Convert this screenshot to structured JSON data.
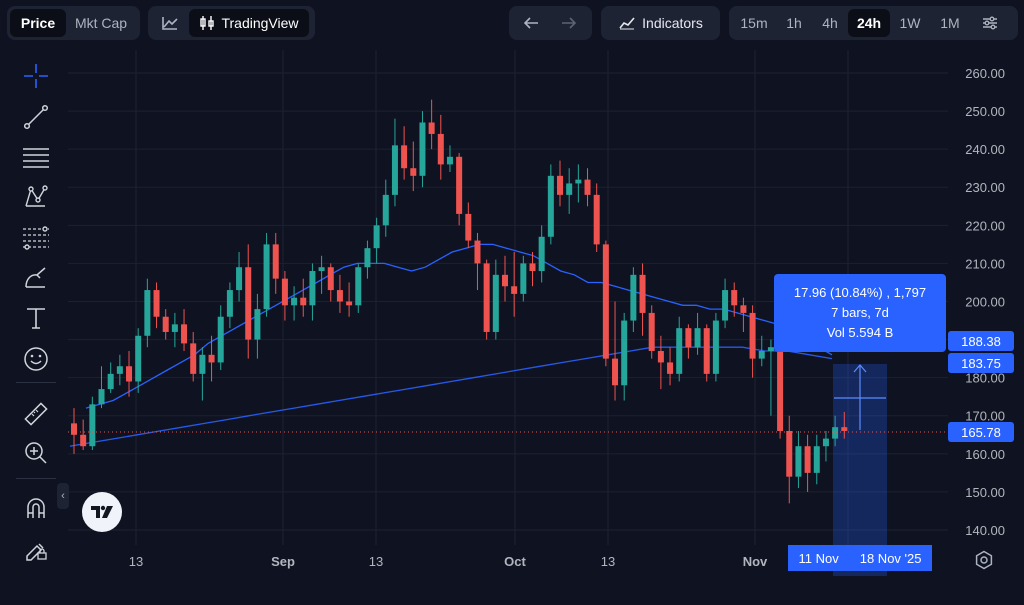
{
  "toolbar": {
    "price_label": "Price",
    "mktcap_label": "Mkt Cap",
    "tradingview_label": "TradingView",
    "indicators_label": "Indicators",
    "timeframes": [
      "15m",
      "1h",
      "4h",
      "24h",
      "1W",
      "1M"
    ],
    "active_timeframe": "24h"
  },
  "left_tools": [
    "crosshair-icon",
    "trend-line-icon",
    "horizontal-lines-icon",
    "pattern-icon",
    "fib-icon",
    "brush-icon",
    "text-icon",
    "emoji-icon",
    "ruler-icon",
    "zoom-in-icon",
    "magnet-icon",
    "lock-pencil-icon"
  ],
  "measure_tooltip": {
    "line1": "17.96 (10.84%) , 1,797",
    "line2": "7 bars, 7d",
    "line3": "Vol 5.594 B"
  },
  "price_tags": {
    "upper": "188.38",
    "lower": "183.75",
    "current": "165.78"
  },
  "date_tags": {
    "start": "11 Nov",
    "end": "18 Nov '25"
  },
  "chart_data": {
    "type": "candlestick",
    "price_axis": [
      "260.00",
      "250.00",
      "240.00",
      "230.00",
      "220.00",
      "210.00",
      "200.00",
      "190.00",
      "180.00",
      "170.00",
      "160.00",
      "150.00",
      "140.00"
    ],
    "time_axis": [
      "13",
      "Sep",
      "13",
      "Oct",
      "13",
      "Nov"
    ],
    "ylim": [
      140,
      260
    ],
    "colors": {
      "up": "#26a69a",
      "down": "#ef5350",
      "ma": "#2962ff",
      "current_line": "#ef5350"
    },
    "candles": [
      [
        168,
        172,
        160,
        165
      ],
      [
        165,
        169,
        161,
        162
      ],
      [
        162,
        175,
        161,
        173
      ],
      [
        173,
        183,
        172,
        177
      ],
      [
        177,
        184,
        176,
        181
      ],
      [
        181,
        186,
        178,
        183
      ],
      [
        183,
        187,
        175,
        179
      ],
      [
        179,
        193,
        176,
        191
      ],
      [
        191,
        206,
        188,
        203
      ],
      [
        203,
        205,
        193,
        196
      ],
      [
        196,
        198,
        190,
        192
      ],
      [
        192,
        197,
        188,
        194
      ],
      [
        194,
        198,
        187,
        189
      ],
      [
        189,
        192,
        179,
        181
      ],
      [
        181,
        188,
        174,
        186
      ],
      [
        186,
        191,
        179,
        184
      ],
      [
        184,
        199,
        182,
        196
      ],
      [
        196,
        205,
        193,
        203
      ],
      [
        203,
        213,
        200,
        209
      ],
      [
        209,
        215,
        185,
        190
      ],
      [
        190,
        202,
        185,
        198
      ],
      [
        198,
        218,
        196,
        215
      ],
      [
        215,
        218,
        202,
        206
      ],
      [
        206,
        208,
        195,
        199
      ],
      [
        199,
        204,
        195,
        201
      ],
      [
        201,
        206,
        196,
        199
      ],
      [
        199,
        210,
        195,
        208
      ],
      [
        208,
        212,
        202,
        209
      ],
      [
        209,
        210,
        200,
        203
      ],
      [
        203,
        207,
        197,
        200
      ],
      [
        200,
        205,
        196,
        199
      ],
      [
        199,
        210,
        197,
        209
      ],
      [
        209,
        216,
        206,
        214
      ],
      [
        214,
        222,
        210,
        220
      ],
      [
        220,
        232,
        217,
        228
      ],
      [
        228,
        248,
        225,
        241
      ],
      [
        241,
        246,
        232,
        235
      ],
      [
        235,
        242,
        229,
        233
      ],
      [
        233,
        250,
        230,
        247
      ],
      [
        247,
        253,
        240,
        244
      ],
      [
        244,
        249,
        232,
        236
      ],
      [
        236,
        241,
        234,
        238
      ],
      [
        238,
        239,
        220,
        223
      ],
      [
        223,
        226,
        214,
        216
      ],
      [
        216,
        218,
        203,
        210
      ],
      [
        210,
        211,
        190,
        192
      ],
      [
        192,
        211,
        190,
        207
      ],
      [
        207,
        212,
        200,
        204
      ],
      [
        204,
        213,
        196,
        202
      ],
      [
        202,
        212,
        200,
        210
      ],
      [
        210,
        213,
        204,
        208
      ],
      [
        208,
        220,
        205,
        217
      ],
      [
        217,
        236,
        215,
        233
      ],
      [
        233,
        237,
        225,
        228
      ],
      [
        228,
        235,
        223,
        231
      ],
      [
        231,
        236,
        226,
        232
      ],
      [
        232,
        235,
        225,
        228
      ],
      [
        228,
        231,
        213,
        215
      ],
      [
        215,
        216,
        183,
        185
      ],
      [
        185,
        200,
        174,
        178
      ],
      [
        178,
        197,
        174,
        195
      ],
      [
        195,
        209,
        192,
        207
      ],
      [
        207,
        210,
        191,
        197
      ],
      [
        197,
        199,
        185,
        187
      ],
      [
        187,
        191,
        177,
        184
      ],
      [
        184,
        188,
        178,
        181
      ],
      [
        181,
        196,
        179,
        193
      ],
      [
        193,
        194,
        185,
        188
      ],
      [
        188,
        197,
        186,
        193
      ],
      [
        193,
        194,
        179,
        181
      ],
      [
        181,
        197,
        179,
        195
      ],
      [
        195,
        206,
        193,
        203
      ],
      [
        203,
        205,
        196,
        199
      ],
      [
        199,
        201,
        192,
        197
      ],
      [
        197,
        199,
        180,
        185
      ],
      [
        185,
        191,
        183,
        187
      ],
      [
        187,
        190,
        170,
        188
      ],
      [
        188,
        189,
        164,
        166
      ],
      [
        166,
        170,
        147,
        154
      ],
      [
        154,
        166,
        151,
        162
      ],
      [
        162,
        165,
        150,
        155
      ],
      [
        155,
        165,
        152,
        162
      ],
      [
        162,
        166,
        158,
        164
      ],
      [
        164,
        170,
        162,
        167
      ],
      [
        167,
        171,
        164,
        166
      ]
    ],
    "ma_fast": [
      172,
      173,
      174,
      176,
      178,
      180,
      182,
      184,
      186,
      189,
      191,
      193,
      195,
      197,
      199,
      201,
      203,
      205,
      207,
      209,
      210,
      210,
      210,
      209,
      208,
      209,
      211,
      213,
      214,
      215,
      215,
      214,
      213,
      212,
      210,
      208,
      207,
      205,
      205,
      204,
      203,
      202,
      201,
      200,
      199,
      199,
      198,
      198,
      197,
      196,
      195,
      194,
      192,
      190,
      188,
      186
    ],
    "ma_slow": [
      162,
      163,
      164,
      165,
      166,
      167,
      168,
      169,
      170,
      171,
      172,
      173,
      174,
      175,
      176,
      177,
      178,
      179,
      180,
      181,
      182,
      183,
      184,
      185,
      186,
      187,
      188,
      188,
      188,
      188,
      188,
      187,
      187,
      186,
      185
    ]
  }
}
